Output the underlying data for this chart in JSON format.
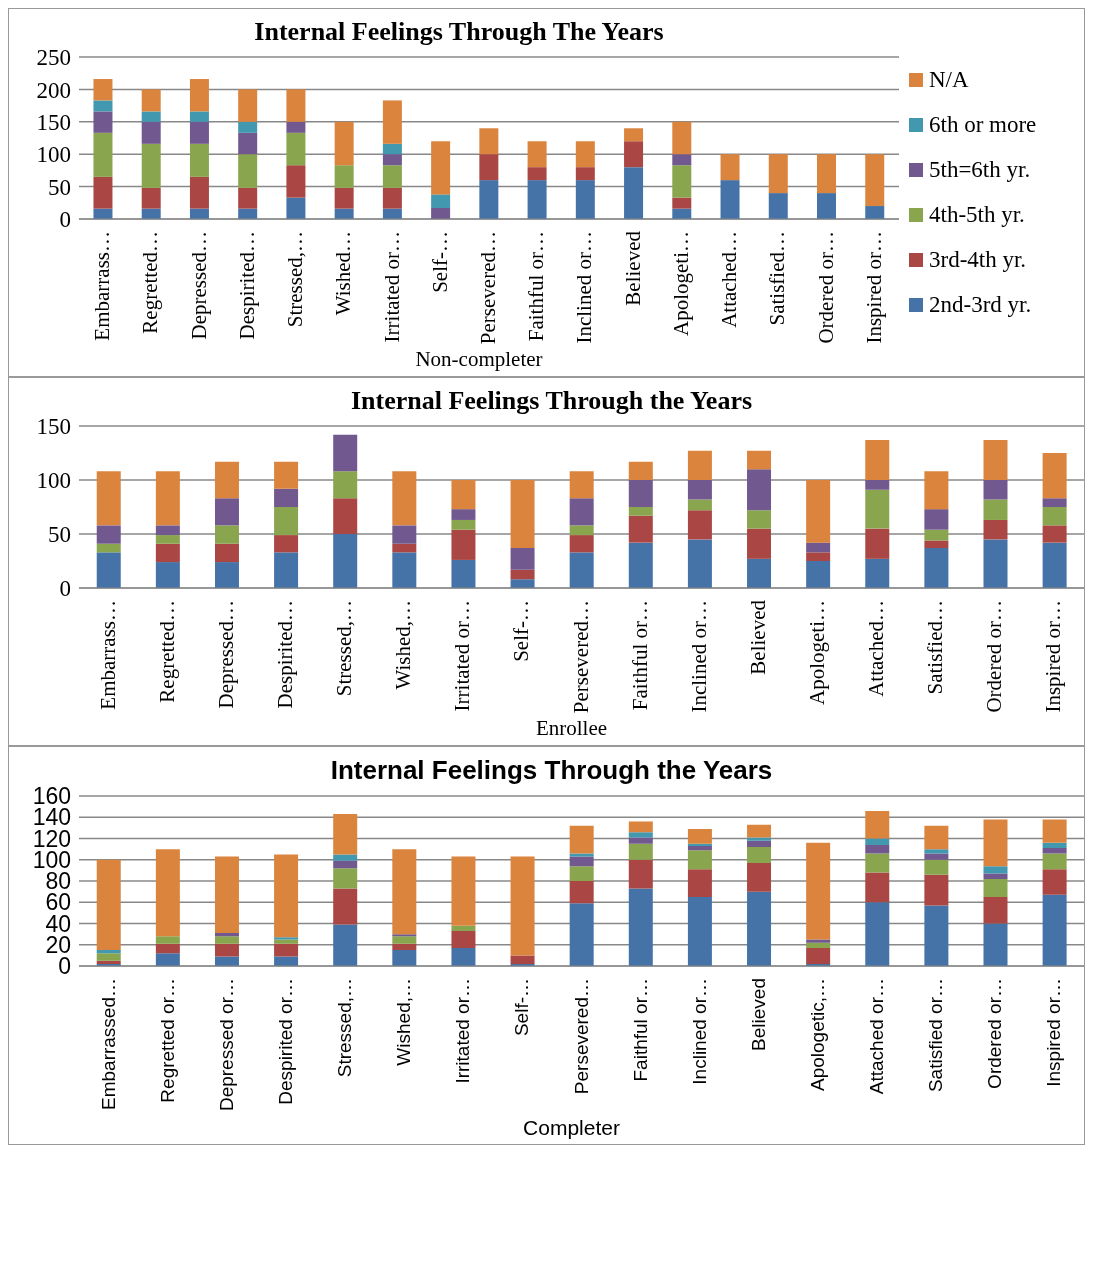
{
  "chart_data": [
    {
      "type": "bar",
      "stacked": true,
      "title": "Internal Feelings Through The Years",
      "xlabel": "Non-completer",
      "categories": [
        "Embarrass…",
        "Regretted…",
        "Depressed…",
        "Despirited…",
        "Stressed,…",
        "Wished…",
        "Irritated or…",
        "Self-…",
        "Persevered…",
        "Faithful or…",
        "Inclined or…",
        "Believed",
        "Apologeti…",
        "Attached…",
        "Satisfied…",
        "Ordered or…",
        "Inspired or…"
      ],
      "ylim": [
        0,
        250
      ],
      "yticks": [
        0,
        50,
        100,
        150,
        200,
        250
      ],
      "grid": "y",
      "legend": "right",
      "series": [
        {
          "name": "2nd-3rd yr.",
          "color": "#4573a7",
          "values": [
            16,
            16,
            16,
            16,
            33,
            16,
            16,
            null,
            60,
            60,
            60,
            80,
            16,
            60,
            40,
            40,
            20
          ]
        },
        {
          "name": "3rd-4th yr.",
          "color": "#aa4643",
          "values": [
            49,
            32,
            49,
            32,
            50,
            32,
            32,
            null,
            40,
            20,
            20,
            40,
            17,
            null,
            null,
            null,
            null
          ]
        },
        {
          "name": "4th-5th yr.",
          "color": "#89a54e",
          "values": [
            68,
            68,
            51,
            52,
            50,
            35,
            35,
            null,
            null,
            null,
            null,
            null,
            50,
            null,
            null,
            null,
            null
          ]
        },
        {
          "name": "5th=6th yr.",
          "color": "#71588f",
          "values": [
            33,
            34,
            34,
            33,
            17,
            null,
            17,
            17,
            null,
            null,
            null,
            null,
            17,
            null,
            null,
            null,
            null
          ]
        },
        {
          "name": "6th or more",
          "color": "#4198af",
          "values": [
            17,
            16,
            16,
            17,
            null,
            null,
            16,
            21,
            null,
            null,
            null,
            null,
            null,
            null,
            null,
            null,
            null
          ]
        },
        {
          "name": "N/A",
          "color": "#db843d",
          "values": [
            33,
            34,
            50,
            50,
            50,
            67,
            67,
            82,
            40,
            40,
            40,
            20,
            50,
            40,
            60,
            60,
            80
          ]
        }
      ]
    },
    {
      "type": "bar",
      "stacked": true,
      "title": "Internal Feelings Through the Years",
      "xlabel": "Enrollee",
      "categories": [
        "Embarrass…",
        "Regretted…",
        "Depressed…",
        "Despirited…",
        "Stressed,…",
        "Wished,…",
        "Irritated or…",
        "Self-…",
        "Persevered…",
        "Faithful or…",
        "Inclined or…",
        "Believed",
        "Apologeti…",
        "Attached…",
        "Satisfied…",
        "Ordered or…",
        "Inspired or…"
      ],
      "ylim": [
        0,
        150
      ],
      "yticks": [
        0,
        50,
        100,
        150
      ],
      "grid": "y",
      "series": [
        {
          "color": "#4573a7",
          "values": [
            33,
            24,
            24,
            33,
            50,
            33,
            26,
            8,
            33,
            42,
            45,
            27,
            25,
            27,
            37,
            45,
            42
          ]
        },
        {
          "color": "#aa4643",
          "values": [
            null,
            17,
            17,
            16,
            33,
            8,
            28,
            9,
            16,
            25,
            27,
            28,
            8,
            28,
            7,
            18,
            16
          ]
        },
        {
          "color": "#89a54e",
          "values": [
            8,
            8,
            17,
            26,
            25,
            null,
            9,
            null,
            9,
            8,
            10,
            17,
            null,
            36,
            10,
            19,
            17
          ]
        },
        {
          "color": "#71588f",
          "values": [
            17,
            9,
            25,
            17,
            34,
            17,
            10,
            20,
            25,
            25,
            18,
            38,
            9,
            9,
            19,
            18,
            8
          ]
        },
        {
          "color": "#db843d",
          "values": [
            50,
            50,
            34,
            25,
            null,
            50,
            27,
            63,
            25,
            17,
            27,
            17,
            58,
            37,
            35,
            37,
            42
          ]
        }
      ]
    },
    {
      "type": "bar",
      "stacked": true,
      "title": "Internal Feelings Through the Years",
      "xlabel": "Completer",
      "categories": [
        "Embarrassed…",
        "Regretted or…",
        "Depressed or…",
        "Despirited or…",
        "Stressed,…",
        "Wished,…",
        "Irritated or…",
        "Self-…",
        "Persevered…",
        "Faithful or…",
        "Inclined or…",
        "Believed",
        "Apologetic,…",
        "Attached or…",
        "Satisfied or…",
        "Ordered or…",
        "Inspired or…"
      ],
      "ylim": [
        0,
        160
      ],
      "yticks": [
        0,
        20,
        40,
        60,
        80,
        100,
        120,
        140,
        160
      ],
      "grid": "y",
      "series": [
        {
          "color": "#4573a7",
          "values": [
            2,
            12,
            9,
            9,
            39,
            15,
            17,
            2,
            59,
            73,
            65,
            70,
            2,
            60,
            57,
            40,
            67
          ]
        },
        {
          "color": "#aa4643",
          "values": [
            3,
            9,
            12,
            12,
            34,
            6,
            16,
            8,
            21,
            27,
            26,
            27,
            15,
            28,
            29,
            25,
            24
          ]
        },
        {
          "color": "#89a54e",
          "values": [
            7,
            7,
            7,
            4,
            19,
            7,
            5,
            null,
            14,
            15,
            18,
            15,
            5,
            18,
            14,
            17,
            15
          ]
        },
        {
          "color": "#71588f",
          "values": [
            null,
            null,
            3,
            null,
            7,
            2,
            null,
            null,
            9,
            6,
            4,
            6,
            3,
            8,
            6,
            5,
            5
          ]
        },
        {
          "color": "#4198af",
          "values": [
            3,
            null,
            null,
            2,
            6,
            null,
            null,
            null,
            3,
            5,
            2,
            3,
            null,
            6,
            4,
            7,
            5
          ]
        },
        {
          "color": "#db843d",
          "values": [
            85,
            82,
            72,
            78,
            38,
            80,
            65,
            93,
            26,
            10,
            14,
            12,
            91,
            26,
            22,
            44,
            22
          ]
        }
      ]
    }
  ]
}
